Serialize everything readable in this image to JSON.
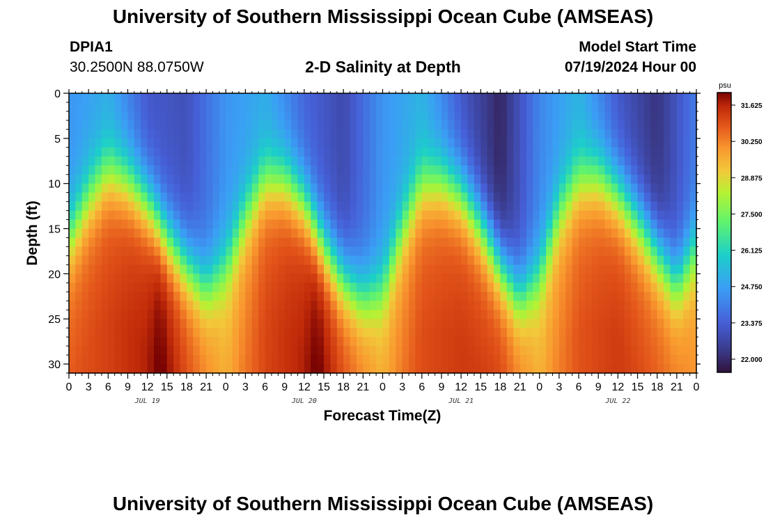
{
  "header": {
    "title": "University of Southern Mississippi Ocean Cube (AMSEAS)",
    "station_id": "DPIA1",
    "station_coords": "30.2500N  88.0750W",
    "chart_title": "2-D Salinity at Depth",
    "model_label": "Model Start Time",
    "model_date": "07/19/2024 Hour 00"
  },
  "footer": {
    "title": "University of Southern Mississippi Ocean Cube (AMSEAS)"
  },
  "chart_data": {
    "type": "heatmap",
    "title": "2-D Salinity at Depth",
    "xlabel": "Forecast Time(Z)",
    "ylabel": "Depth (ft)",
    "x_unit": "hours from model start",
    "xlim": [
      0,
      96
    ],
    "ylim": [
      0,
      31
    ],
    "y_inverted": true,
    "x_tick_labels": [
      "0",
      "3",
      "6",
      "9",
      "12",
      "15",
      "18",
      "21",
      "0",
      "3",
      "6",
      "9",
      "12",
      "15",
      "18",
      "21",
      "0",
      "3",
      "6",
      "9",
      "12",
      "15",
      "18",
      "21",
      "0",
      "3",
      "6",
      "9",
      "12",
      "15",
      "18",
      "21",
      "0"
    ],
    "day_labels": [
      {
        "label": "JUL 19",
        "hour": 12
      },
      {
        "label": "JUL 20",
        "hour": 36
      },
      {
        "label": "JUL 21",
        "hour": 60
      },
      {
        "label": "JUL 22",
        "hour": 84
      }
    ],
    "y_ticks": [
      0,
      5,
      10,
      15,
      20,
      25,
      30
    ],
    "colorbar": {
      "unit": "psu",
      "min": 21.5,
      "max": 32.1,
      "ticks": [
        "31.625",
        "30.250",
        "28.875",
        "27.500",
        "26.125",
        "24.750",
        "23.375",
        "22.000"
      ]
    },
    "halocline_depth_ft": {
      "hours": [
        0,
        3,
        6,
        9,
        12,
        15,
        18,
        21,
        24,
        27,
        30,
        33,
        36,
        39,
        42,
        45,
        48,
        51,
        54,
        57,
        60,
        63,
        66,
        69,
        72,
        75,
        78,
        81,
        84,
        87,
        90,
        93,
        96
      ],
      "depth": [
        16,
        11.5,
        8.5,
        9.5,
        12,
        16,
        19,
        21.5,
        19,
        13.5,
        9.5,
        9.5,
        12,
        17,
        20.5,
        22.5,
        21.5,
        15,
        10,
        9.5,
        11,
        14.5,
        19,
        22.5,
        20,
        13,
        9.5,
        9,
        11,
        14,
        17.5,
        21,
        17
      ]
    },
    "surface_salinity_psu": {
      "hours": [
        0,
        6,
        12,
        18,
        24,
        30,
        36,
        42,
        48,
        54,
        60,
        66,
        72,
        78,
        84,
        90,
        96
      ],
      "psu": [
        24.5,
        25.0,
        23.2,
        23.0,
        24.5,
        25.0,
        23.5,
        22.8,
        24.5,
        25.2,
        23.2,
        21.9,
        24.2,
        25.2,
        23.2,
        22.2,
        24.0
      ]
    },
    "deep_salinity_psu": {
      "hours": [
        0,
        6,
        12,
        14,
        18,
        24,
        30,
        36,
        38,
        42,
        48,
        54,
        60,
        66,
        72,
        78,
        84,
        90,
        96
      ],
      "psu": [
        30.3,
        30.7,
        31.2,
        31.8,
        30.6,
        29.2,
        30.6,
        31.2,
        31.8,
        30.6,
        29.3,
        30.5,
        30.8,
        30.7,
        29.2,
        30.4,
        30.8,
        30.3,
        29.6
      ]
    }
  }
}
